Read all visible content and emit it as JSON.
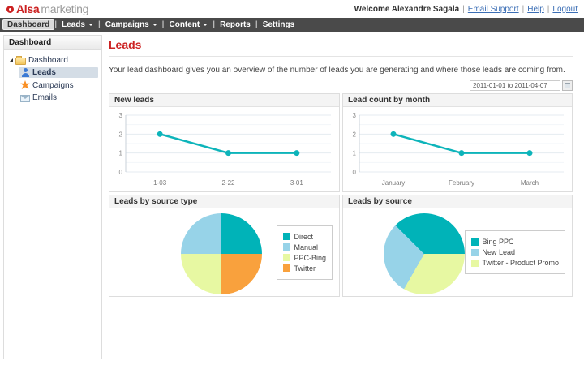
{
  "brand": {
    "name_bold": "Alsa",
    "name_light": "marketing",
    "accent_color": "#cc2222"
  },
  "header": {
    "welcome": "Welcome Alexandre Sagala",
    "links": [
      "Email Support",
      "Help",
      "Logout"
    ]
  },
  "nav": {
    "items": [
      {
        "label": "Dashboard",
        "active": true,
        "dropdown": false
      },
      {
        "label": "Leads",
        "active": false,
        "dropdown": true
      },
      {
        "label": "Campaigns",
        "active": false,
        "dropdown": true
      },
      {
        "label": "Content",
        "active": false,
        "dropdown": true
      },
      {
        "label": "Reports",
        "active": false,
        "dropdown": false
      },
      {
        "label": "Settings",
        "active": false,
        "dropdown": false
      }
    ]
  },
  "sidebar": {
    "title": "Dashboard",
    "root": {
      "label": "Dashboard",
      "icon": "folder-icon",
      "expanded": true
    },
    "items": [
      {
        "label": "Leads",
        "icon": "person-icon",
        "selected": true
      },
      {
        "label": "Campaigns",
        "icon": "campaign-icon",
        "selected": false
      },
      {
        "label": "Emails",
        "icon": "envelope-icon",
        "selected": false
      }
    ]
  },
  "main": {
    "title": "Leads",
    "description": "Your lead dashboard gives you an overview of the number of leads you are generating and where those leads are coming from.",
    "date_range": "2011-01-01 to 2011-04-07"
  },
  "chart_data": [
    {
      "type": "line",
      "title": "New leads",
      "categories": [
        "1-03",
        "2-22",
        "3-01"
      ],
      "values": [
        2,
        1,
        1
      ],
      "xlabel": "",
      "ylabel": "",
      "ylim": [
        0,
        3
      ],
      "yticks": [
        0,
        1,
        2,
        3
      ],
      "grid": true,
      "legend_position": "none",
      "line_color": "#0db4ba"
    },
    {
      "type": "line",
      "title": "Lead count by month",
      "categories": [
        "January",
        "February",
        "March"
      ],
      "values": [
        2,
        1,
        1
      ],
      "xlabel": "",
      "ylabel": "",
      "ylim": [
        0,
        3
      ],
      "yticks": [
        0,
        1,
        2,
        3
      ],
      "grid": true,
      "legend_position": "none",
      "line_color": "#0db4ba"
    },
    {
      "type": "pie",
      "title": "Leads by source type",
      "slices": [
        {
          "label": "Direct",
          "value": 25,
          "color": "#00b3b8"
        },
        {
          "label": "Manual",
          "value": 25,
          "color": "#97d3e8"
        },
        {
          "label": "PPC-Bing",
          "value": 25,
          "color": "#e7f8a2"
        },
        {
          "label": "Twitter",
          "value": 25,
          "color": "#f9a13d"
        }
      ],
      "legend_position": "right",
      "start_deg": 0,
      "clockwise_order": [
        0,
        3,
        2,
        1
      ]
    },
    {
      "type": "pie",
      "title": "Leads by source",
      "slices": [
        {
          "label": "Bing PPC",
          "value": 37.5,
          "color": "#00b3b8"
        },
        {
          "label": "New Lead",
          "value": 29.2,
          "color": "#97d3e8"
        },
        {
          "label": "Twitter - Product Promo",
          "value": 33.3,
          "color": "#e7f8a2"
        }
      ],
      "legend_position": "right",
      "start_deg": -45,
      "clockwise_order": [
        0,
        2,
        1
      ]
    }
  ]
}
